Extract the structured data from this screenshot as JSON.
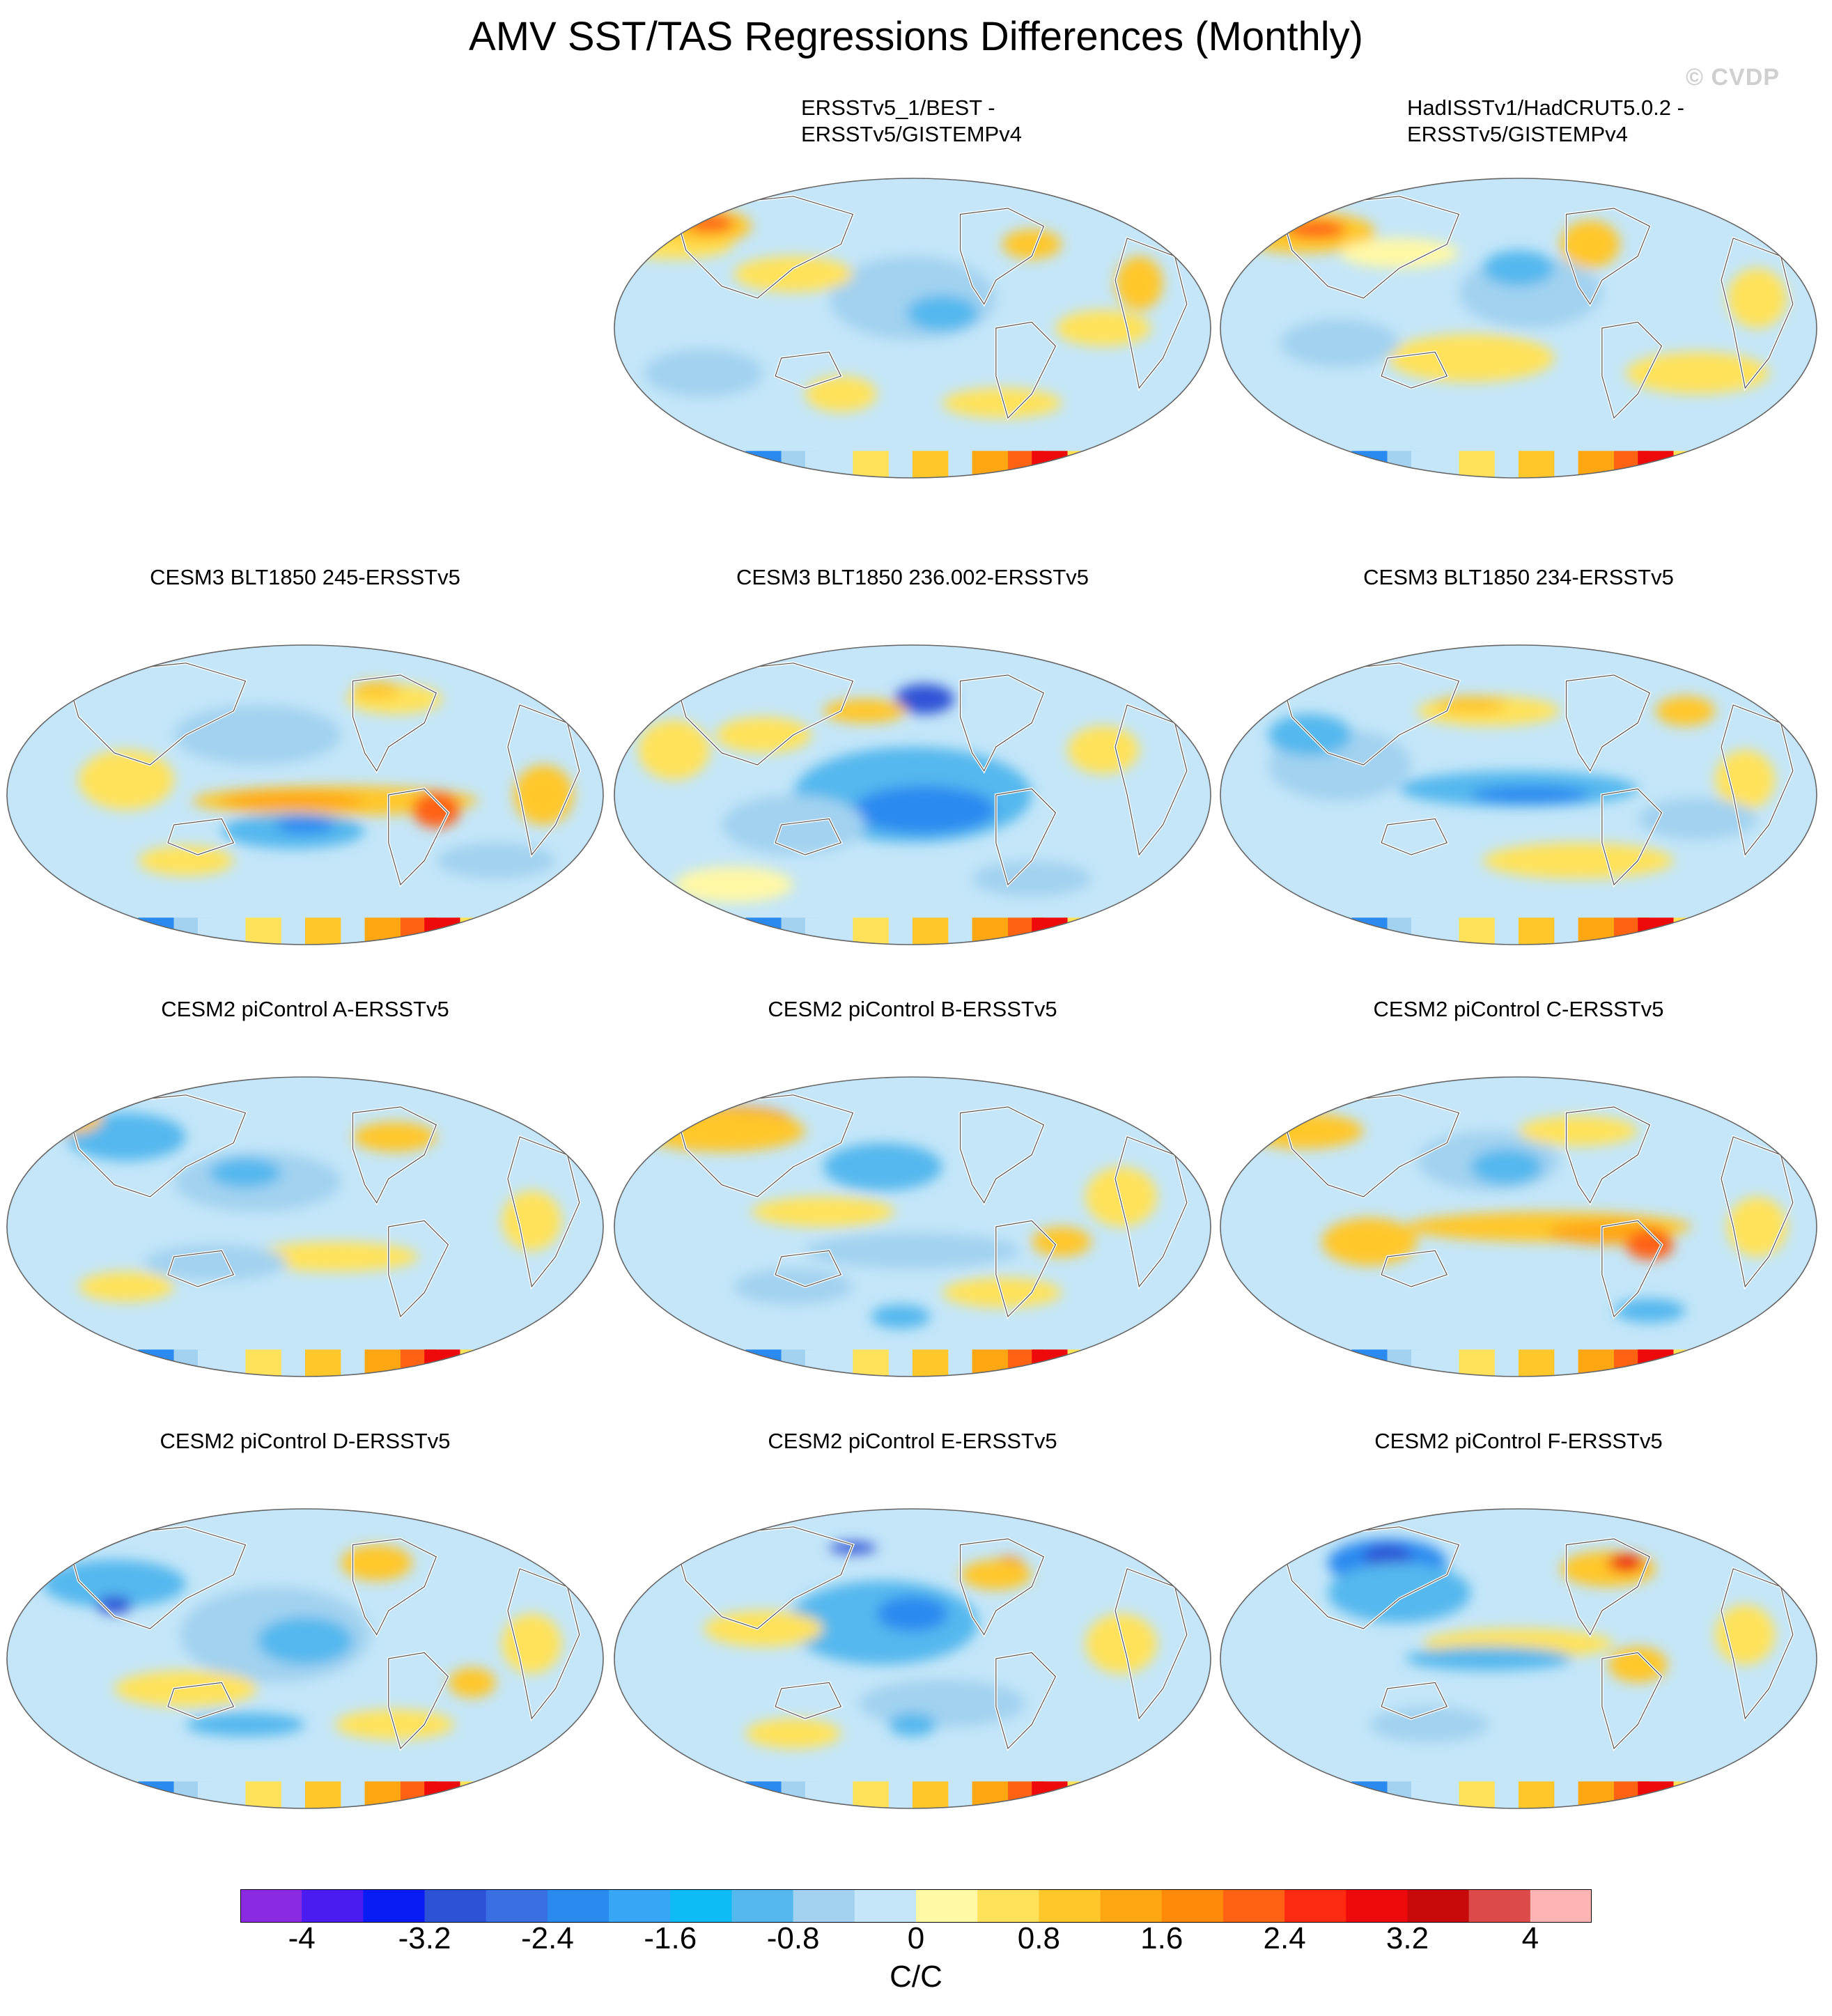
{
  "title": "AMV SST/TAS Regressions Differences (Monthly)",
  "watermark": "© CVDP",
  "panels": [
    {
      "id": "p1",
      "title_lines": [
        "ERSSTv5_1/BEST -",
        "ERSSTv5/GISTEMPv4"
      ],
      "pattern": "obs1"
    },
    {
      "id": "p2",
      "title_lines": [
        "HadISSTv1/HadCRUT5.0.2 -",
        "ERSSTv5/GISTEMPv4"
      ],
      "pattern": "obs2"
    },
    {
      "id": "p3",
      "title_lines": [
        "CESM3 BLT1850 245-ERSSTv5"
      ],
      "pattern": "warm-enso"
    },
    {
      "id": "p4",
      "title_lines": [
        "CESM3 BLT1850 236.002-ERSSTv5"
      ],
      "pattern": "cold-pac"
    },
    {
      "id": "p5",
      "title_lines": [
        "CESM3 BLT1850 234-ERSSTv5"
      ],
      "pattern": "cold-enso"
    },
    {
      "id": "p6",
      "title_lines": [
        "CESM2 piControl A-ERSSTv5"
      ],
      "pattern": "mixed-a"
    },
    {
      "id": "p7",
      "title_lines": [
        "CESM2 piControl B-ERSSTv5"
      ],
      "pattern": "mixed-b"
    },
    {
      "id": "p8",
      "title_lines": [
        "CESM2 piControl C-ERSSTv5"
      ],
      "pattern": "warm-trop"
    },
    {
      "id": "p9",
      "title_lines": [
        "CESM2 piControl D-ERSSTv5"
      ],
      "pattern": "mixed-d"
    },
    {
      "id": "p10",
      "title_lines": [
        "CESM2 piControl E-ERSSTv5"
      ],
      "pattern": "mixed-e"
    },
    {
      "id": "p11",
      "title_lines": [
        "CESM2 piControl F-ERSSTv5"
      ],
      "pattern": "mixed-f"
    }
  ],
  "colorbar": {
    "colors": [
      "#8a2be2",
      "#4b1cf0",
      "#0a1cf5",
      "#2e52d6",
      "#3a6fe3",
      "#2a8af0",
      "#36a6f5",
      "#0ebcf5",
      "#55b8ee",
      "#a2d2f0",
      "#c4e6f8",
      "#fff8a6",
      "#ffe25a",
      "#ffc72a",
      "#ffa712",
      "#ff8a0a",
      "#ff6212",
      "#ff2a12",
      "#ee0a0a",
      "#c80a0a",
      "#dc4a4a",
      "#ffb4b4"
    ],
    "ticks": [
      "-4",
      "-3.2",
      "-2.4",
      "-1.6",
      "-0.8",
      "0",
      "0.8",
      "1.6",
      "2.4",
      "3.2",
      "4"
    ],
    "units": "C/C"
  }
}
